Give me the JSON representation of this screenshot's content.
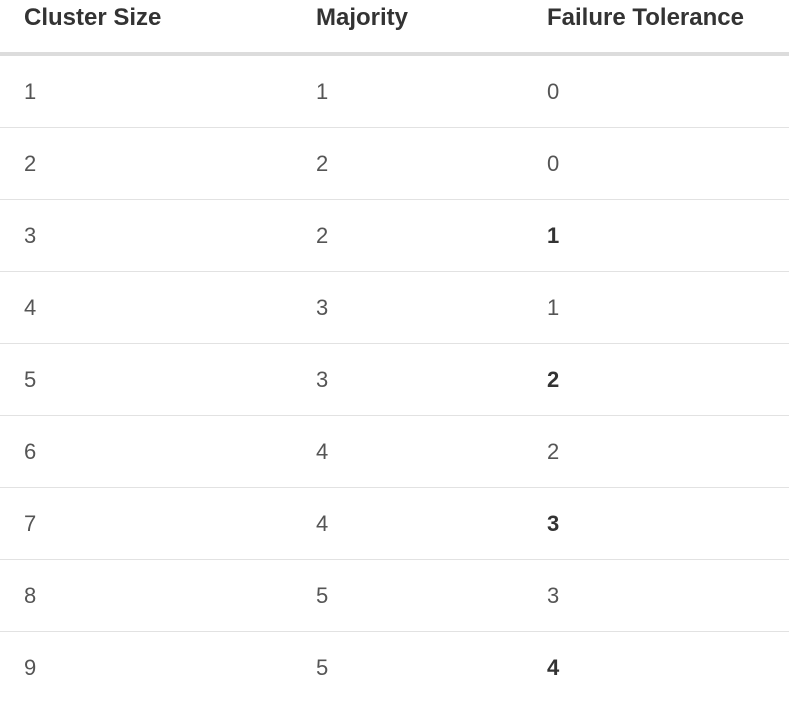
{
  "table": {
    "headers": [
      "Cluster Size",
      "Majority",
      "Failure Tolerance"
    ],
    "rows": [
      {
        "cluster_size": "1",
        "majority": "1",
        "failure_tolerance": "0",
        "highlight": false
      },
      {
        "cluster_size": "2",
        "majority": "2",
        "failure_tolerance": "0",
        "highlight": false
      },
      {
        "cluster_size": "3",
        "majority": "2",
        "failure_tolerance": "1",
        "highlight": true
      },
      {
        "cluster_size": "4",
        "majority": "3",
        "failure_tolerance": "1",
        "highlight": false
      },
      {
        "cluster_size": "5",
        "majority": "3",
        "failure_tolerance": "2",
        "highlight": true
      },
      {
        "cluster_size": "6",
        "majority": "4",
        "failure_tolerance": "2",
        "highlight": false
      },
      {
        "cluster_size": "7",
        "majority": "4",
        "failure_tolerance": "3",
        "highlight": true
      },
      {
        "cluster_size": "8",
        "majority": "5",
        "failure_tolerance": "3",
        "highlight": false
      },
      {
        "cluster_size": "9",
        "majority": "5",
        "failure_tolerance": "4",
        "highlight": true
      }
    ]
  }
}
